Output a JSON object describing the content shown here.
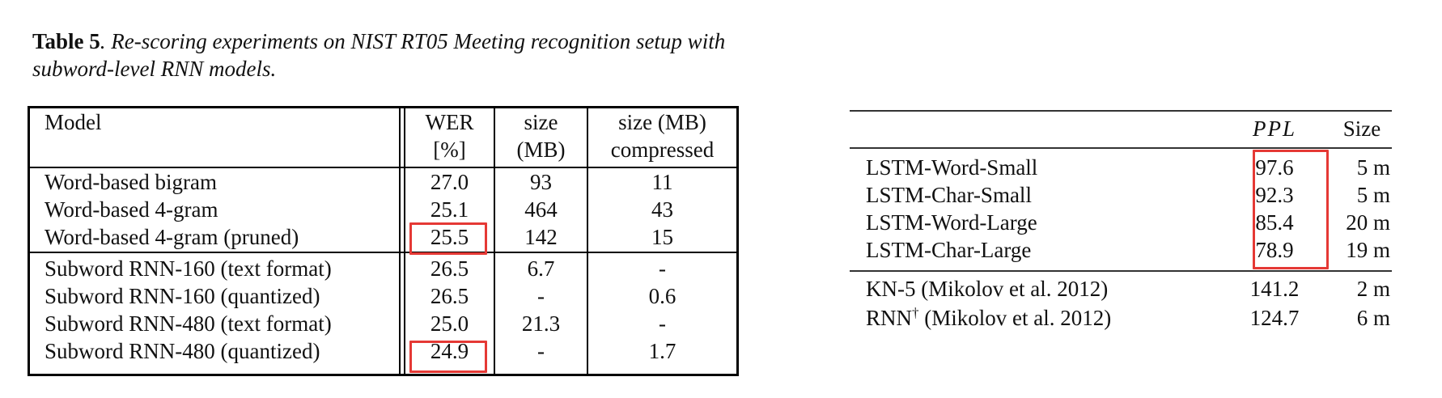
{
  "caption": {
    "lead": "Table 5",
    "text": ". Re-scoring experiments on NIST RT05 Meeting recognition setup with subword-level RNN models."
  },
  "table5": {
    "headers": {
      "model": "Model",
      "wer_line1": "WER",
      "wer_line2": "[%]",
      "size_line1": "size",
      "size_line2": "(MB)",
      "sizec_line1": "size (MB)",
      "sizec_line2": "compressed"
    },
    "rows": [
      {
        "model": "Word-based bigram",
        "wer": "27.0",
        "size": "93",
        "compressed": "11"
      },
      {
        "model": "Word-based 4-gram",
        "wer": "25.1",
        "size": "464",
        "compressed": "43"
      },
      {
        "model": "Word-based 4-gram (pruned)",
        "wer": "25.5",
        "size": "142",
        "compressed": "15"
      },
      {
        "model": "Subword RNN-160 (text format)",
        "wer": "26.5",
        "size": "6.7",
        "compressed": "-"
      },
      {
        "model": "Subword RNN-160 (quantized)",
        "wer": "26.5",
        "size": "-",
        "compressed": "0.6"
      },
      {
        "model": "Subword RNN-480 (text format)",
        "wer": "25.0",
        "size": "21.3",
        "compressed": "-"
      },
      {
        "model": "Subword RNN-480 (quantized)",
        "wer": "24.9",
        "size": "-",
        "compressed": "1.7"
      }
    ]
  },
  "table_right": {
    "headers": {
      "ppl": "PPL",
      "size": "Size"
    },
    "rows": [
      {
        "model": "LSTM-Word-Small",
        "ppl": "97.6",
        "size": "5 m"
      },
      {
        "model": "LSTM-Char-Small",
        "ppl": "92.3",
        "size": "5 m"
      },
      {
        "model": "LSTM-Word-Large",
        "ppl": "85.4",
        "size": "20 m"
      },
      {
        "model": "LSTM-Char-Large",
        "ppl": "78.9",
        "size": "19 m"
      },
      {
        "model": "KN-5 (Mikolov et al. 2012)",
        "ppl": "141.2",
        "size": "2 m"
      },
      {
        "model_prefix": "RNN",
        "model_sup": "†",
        "model_suffix": " (Mikolov et al. 2012)",
        "ppl": "124.7",
        "size": "6 m"
      }
    ]
  },
  "highlight_color": "#e53935"
}
